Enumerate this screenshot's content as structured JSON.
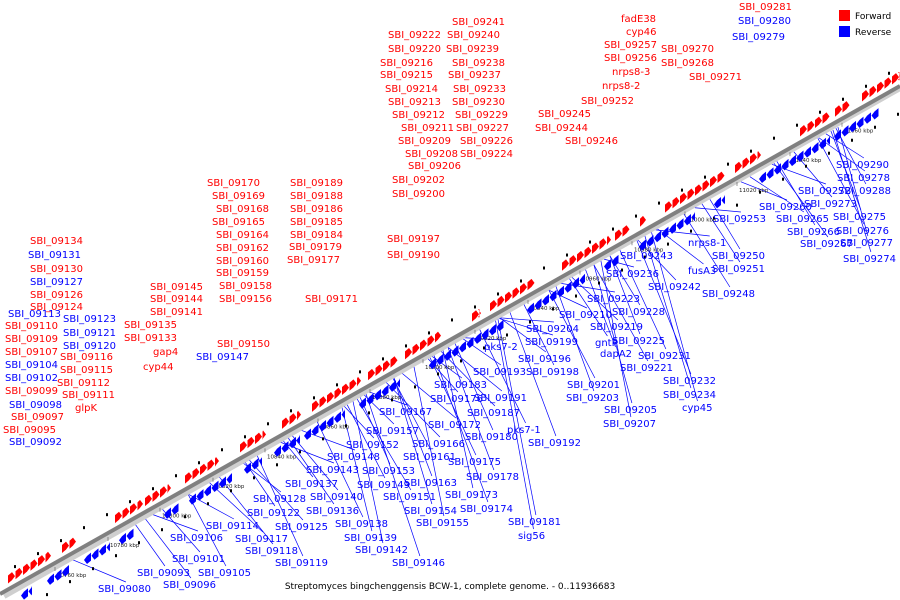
{
  "caption": "Streptomyces bingchenggensis BCW-1, complete genome. - 0..11936683",
  "legend": {
    "forward": "Forward",
    "reverse": "Reverse"
  },
  "colors": {
    "forward": "#ff0000",
    "reverse": "#0000ff",
    "axis": "#808080",
    "small_feature": "#000000"
  },
  "scale_labels": [
    "10760 kbp",
    "10780 kbp",
    "10800 kbp",
    "10820 kbp",
    "10840 kbp",
    "10860 kbp",
    "10880 kbp",
    "10900 kbp",
    "10920 kbp",
    "10940 kbp",
    "10960 kbp",
    "10980 kbp",
    "11000 kbp",
    "11020 kbp",
    "11040 kbp",
    "11060 kbp"
  ],
  "forward_labels": [
    "SBI_09134",
    "SBI_09130",
    "SBI_09126",
    "SBI_09124",
    "SBI_09110",
    "SBI_09109",
    "SBI_09107",
    "SBI_09116",
    "SBI_09115",
    "SBI_09112",
    "SBI_09099",
    "SBI_09111",
    "SBI_09097",
    "SBI_09095",
    "glpK",
    "SBI_09145",
    "SBI_09144",
    "SBI_09141",
    "SBI_09135",
    "SBI_09133",
    "gap4",
    "cyp44",
    "SBI_09150",
    "SBI_09170",
    "SBI_09169",
    "SBI_09168",
    "SBI_09165",
    "SBI_09164",
    "SBI_09162",
    "SBI_09160",
    "SBI_09159",
    "SBI_09158",
    "SBI_09156",
    "SBI_09189",
    "SBI_09188",
    "SBI_09186",
    "SBI_09185",
    "SBI_09184",
    "SBI_09179",
    "SBI_09177",
    "SBI_09171",
    "SBI_09190",
    "SBI_09197",
    "SBI_09222",
    "SBI_09220",
    "SBI_09216",
    "SBI_09215",
    "SBI_09214",
    "SBI_09213",
    "SBI_09212",
    "SBI_09211",
    "SBI_09209",
    "SBI_09208",
    "SBI_09206",
    "SBI_09202",
    "SBI_09200",
    "SBI_09241",
    "SBI_09240",
    "SBI_09239",
    "SBI_09238",
    "SBI_09237",
    "SBI_09233",
    "SBI_09230",
    "SBI_09229",
    "SBI_09227",
    "SBI_09226",
    "SBI_09224",
    "SBI_09245",
    "SBI_09244",
    "SBI_09246",
    "fadE38",
    "cyp46",
    "SBI_09257",
    "SBI_09256",
    "nrps8-3",
    "nrps8-2",
    "SBI_09252",
    "SBI_09270",
    "SBI_09268",
    "SBI_09271",
    "SBI_09281"
  ],
  "reverse_labels": [
    "SBI_09131",
    "SBI_09127",
    "SBI_09113",
    "SBI_09123",
    "SBI_09121",
    "SBI_09120",
    "SBI_09104",
    "SBI_09102",
    "SBI_09098",
    "SBI_09092",
    "SBI_09147",
    "SBI_09280",
    "SBI_09279",
    "SBI_09290",
    "SBI_09278",
    "SBI_09272",
    "SBI_09288",
    "SBI_09273",
    "SBI_09260",
    "SBI_09265",
    "SBI_09275",
    "SBI_09266",
    "SBI_09276",
    "SBI_09267",
    "SBI_09277",
    "SBI_09274",
    "SBI_09253",
    "nrps8-1",
    "SBI_09250",
    "SBI_09251",
    "fusA3",
    "SBI_09243",
    "SBI_09236",
    "SBI_09242",
    "SBI_09248",
    "SBI_09223",
    "SBI_09228",
    "SBI_09210",
    "SBI_09219",
    "SBI_09204",
    "SBI_09225",
    "gntP",
    "SBI_09231",
    "SBI_09199",
    "dapA2",
    "pks7-2",
    "SBI_09196",
    "SBI_09221",
    "SBI_09198",
    "SBI_09193",
    "SBI_09201",
    "SBI_09232",
    "SBI_09183",
    "SBI_09203",
    "SBI_09234",
    "SBI_09191",
    "SBI_09176",
    "SBI_09205",
    "cyp45",
    "SBI_09187",
    "SBI_09207",
    "SBI_09167",
    "pks7-1",
    "SBI_09172",
    "SBI_09157",
    "SBI_09180",
    "SBI_09192",
    "SBI_09166",
    "SBI_09152",
    "SBI_09161",
    "SBI_09175",
    "SBI_09148",
    "SBI_09153",
    "SBI_09163",
    "SBI_09178",
    "SBI_09143",
    "SBI_09137",
    "SBI_09149",
    "SBI_09140",
    "SBI_09151",
    "SBI_09173",
    "SBI_09128",
    "SBI_09136",
    "SBI_09174",
    "SBI_09122",
    "SBI_09154",
    "SBI_09138",
    "SBI_09125",
    "SBI_09155",
    "SBI_09181",
    "SBI_09114",
    "SBI_09117",
    "SBI_09139",
    "sig56",
    "SBI_09106",
    "SBI_09118",
    "SBI_09142",
    "SBI_09101",
    "SBI_09119",
    "SBI_09146",
    "SBI_09093",
    "SBI_09105",
    "SBI_09096",
    "SBI_09080"
  ]
}
